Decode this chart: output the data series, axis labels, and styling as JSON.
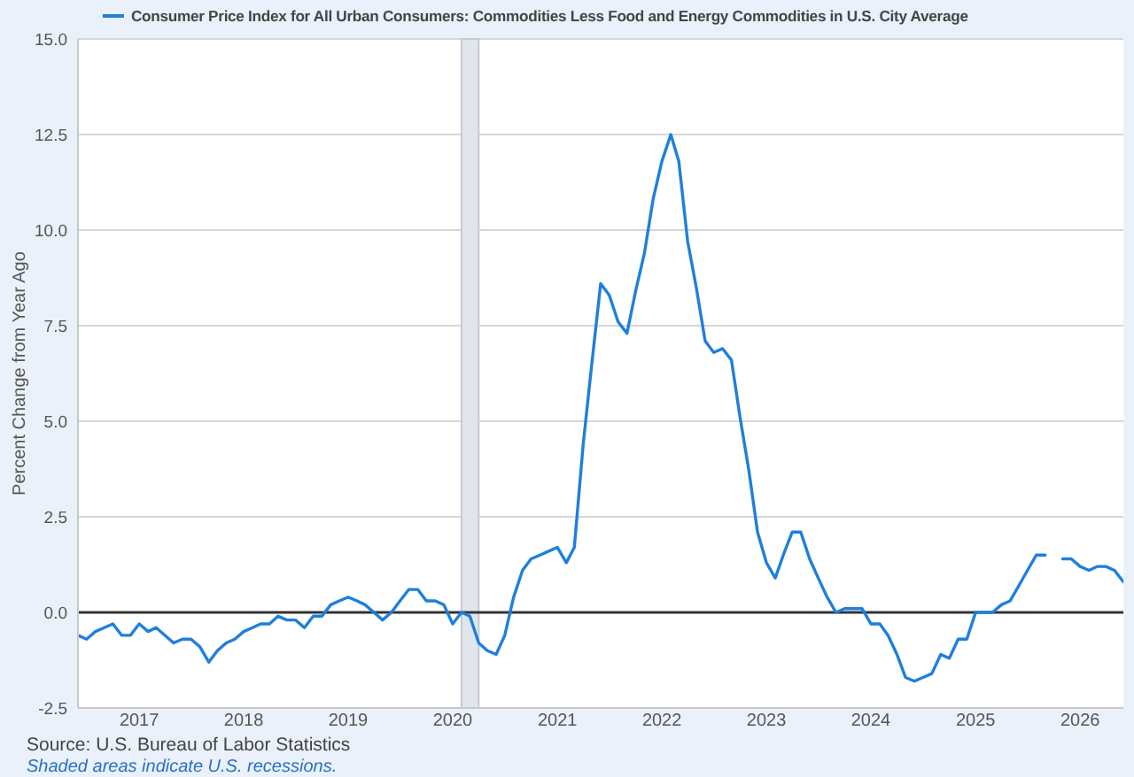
{
  "chart_data": {
    "type": "line",
    "ylabel": "Percent Change from Year Ago",
    "annotations": [
      "Source: U.S. Bureau of Labor Statistics",
      "Shaded areas indicate U.S. recessions."
    ],
    "x": [
      "2016-06",
      "2016-07",
      "2016-08",
      "2016-09",
      "2016-10",
      "2016-11",
      "2016-12",
      "2017-01",
      "2017-02",
      "2017-03",
      "2017-04",
      "2017-05",
      "2017-06",
      "2017-07",
      "2017-08",
      "2017-09",
      "2017-10",
      "2017-11",
      "2017-12",
      "2018-01",
      "2018-02",
      "2018-03",
      "2018-04",
      "2018-05",
      "2018-06",
      "2018-07",
      "2018-08",
      "2018-09",
      "2018-10",
      "2018-11",
      "2018-12",
      "2019-01",
      "2019-02",
      "2019-03",
      "2019-04",
      "2019-05",
      "2019-06",
      "2019-07",
      "2019-08",
      "2019-09",
      "2019-10",
      "2019-11",
      "2019-12",
      "2020-01",
      "2020-02",
      "2020-03",
      "2020-04",
      "2020-05",
      "2020-06",
      "2020-07",
      "2020-08",
      "2020-09",
      "2020-10",
      "2020-11",
      "2020-12",
      "2021-01",
      "2021-02",
      "2021-03",
      "2021-04",
      "2021-05",
      "2021-06",
      "2021-07",
      "2021-08",
      "2021-09",
      "2021-10",
      "2021-11",
      "2021-12",
      "2022-01",
      "2022-02",
      "2022-03",
      "2022-04",
      "2022-05",
      "2022-06",
      "2022-07",
      "2022-08",
      "2022-09",
      "2022-10",
      "2022-11",
      "2022-12",
      "2023-01",
      "2023-02",
      "2023-03",
      "2023-04",
      "2023-05",
      "2023-06",
      "2023-07",
      "2023-08",
      "2023-09",
      "2023-10",
      "2023-11",
      "2023-12",
      "2024-01",
      "2024-02",
      "2024-03",
      "2024-04",
      "2024-05",
      "2024-06",
      "2024-07",
      "2024-08",
      "2024-09",
      "2024-10",
      "2024-11",
      "2024-12",
      "2025-01",
      "2025-02",
      "2025-03",
      "2025-04",
      "2025-05",
      "2025-06",
      "2025-07",
      "2025-08",
      "2025-09",
      "2025-10",
      "2025-11",
      "2025-12",
      "2026-01",
      "2026-02",
      "2026-03",
      "2026-04",
      "2026-05",
      "2026-06"
    ],
    "series": [
      {
        "name": "Consumer Price Index for All Urban Consumers: Commodities Less Food and Energy Commodities in U.S. City Average",
        "color": "#1f7fdc",
        "values": [
          -0.6,
          -0.7,
          -0.5,
          -0.4,
          -0.3,
          -0.6,
          -0.6,
          -0.3,
          -0.5,
          -0.4,
          -0.6,
          -0.8,
          -0.7,
          -0.7,
          -0.9,
          -1.3,
          -1.0,
          -0.8,
          -0.7,
          -0.5,
          -0.4,
          -0.3,
          -0.3,
          -0.1,
          -0.2,
          -0.2,
          -0.4,
          -0.1,
          -0.1,
          0.2,
          0.3,
          0.4,
          0.3,
          0.2,
          0.0,
          -0.2,
          0.0,
          0.3,
          0.6,
          0.6,
          0.3,
          0.3,
          0.2,
          -0.3,
          0.0,
          -0.1,
          -0.8,
          -1.0,
          -1.1,
          -0.6,
          0.4,
          1.1,
          1.4,
          1.5,
          1.6,
          1.7,
          1.3,
          1.7,
          4.4,
          6.5,
          8.6,
          8.3,
          7.6,
          7.3,
          8.4,
          9.4,
          10.8,
          11.8,
          12.5,
          11.8,
          9.7,
          8.5,
          7.1,
          6.8,
          6.9,
          6.6,
          5.1,
          3.7,
          2.1,
          1.3,
          0.9,
          1.5,
          2.1,
          2.1,
          1.4,
          0.9,
          0.4,
          0.0,
          0.1,
          0.1,
          0.1,
          -0.3,
          -0.3,
          -0.6,
          -1.1,
          -1.7,
          -1.8,
          -1.7,
          -1.6,
          -1.1,
          -1.2,
          -0.7,
          -0.7,
          0.0,
          0.0,
          0.0,
          0.2,
          0.3,
          0.7,
          1.1,
          1.5,
          1.5,
          null,
          1.4,
          1.4,
          1.2,
          1.1,
          1.2,
          1.2,
          1.1,
          0.8
        ]
      }
    ],
    "xlim": [
      "2016-06",
      "2026-06"
    ],
    "xticks": [
      "2017",
      "2018",
      "2019",
      "2020",
      "2021",
      "2022",
      "2023",
      "2024",
      "2025",
      "2026"
    ],
    "ylim": [
      -2.5,
      15
    ],
    "yticks": [
      -2.5,
      {
        "value": 0,
        "label": "0.0"
      },
      2.5,
      {
        "value": 5,
        "label": "5.0"
      },
      7.5,
      {
        "value": 10,
        "label": "10.0"
      },
      12.5,
      {
        "value": 15,
        "label": "15.0"
      }
    ],
    "ref_lines": [
      {
        "axis": "y",
        "value": 0,
        "color": "#333333"
      }
    ],
    "bands": [
      {
        "axis": "x",
        "from": "2020-02",
        "to": "2020-04",
        "color": "#e1e6ec"
      }
    ],
    "grid": "y",
    "legend": "top left",
    "marker": "none"
  }
}
